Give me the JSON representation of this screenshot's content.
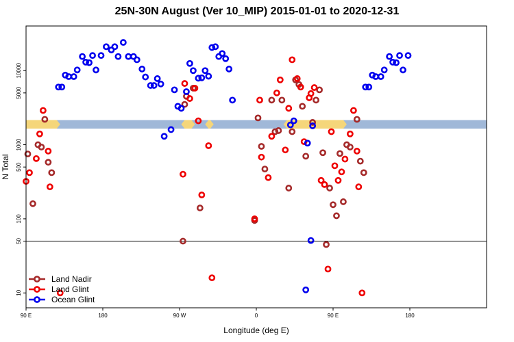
{
  "chart_data": {
    "type": "scatter",
    "title": "25N-30N August (Ver 10_MIP)   2015-01-01 to 2020-12-31",
    "xlabel": "Longitude (deg E)",
    "ylabel": "N Total",
    "y_scale": "log",
    "xlim": [
      -90,
      180
    ],
    "ylim": [
      6.3,
      40000
    ],
    "x_ticks": [
      {
        "value": -90,
        "label": "90 E"
      },
      {
        "value": -45,
        "label": "180"
      },
      {
        "value": 0,
        "label": "90 W"
      },
      {
        "value": 45,
        "label": "0"
      },
      {
        "value": 90,
        "label": "90 E"
      },
      {
        "value": 135,
        "label": "180"
      }
    ],
    "y_ticks": [
      {
        "value": 10,
        "label": "10"
      },
      {
        "value": 50,
        "label": "50"
      },
      {
        "value": 100,
        "label": "100"
      },
      {
        "value": 500,
        "label": "500"
      },
      {
        "value": 1000,
        "label": "1000"
      },
      {
        "value": 5000,
        "label": "5000"
      },
      {
        "value": 10000,
        "label": "10000"
      }
    ],
    "reference_line_y": 50,
    "legend_position": "bottom-left",
    "band": {
      "y_low": 1650,
      "y_high": 2150,
      "land_color": "#f5d67a",
      "ocean_color": "#a0b8d8",
      "land_segments": [
        [
          -90,
          -72
        ],
        [
          3,
          7
        ],
        [
          17,
          18
        ],
        [
          63,
          96
        ],
        [
          193,
          196
        ]
      ]
    },
    "series": [
      {
        "name": "Land Nadir",
        "color": "#a52a2a",
        "points": [
          {
            "x": -89,
            "y": 750
          },
          {
            "x": -86,
            "y": 160
          },
          {
            "x": -83,
            "y": 1000
          },
          {
            "x": -81,
            "y": 930
          },
          {
            "x": -79,
            "y": 2200
          },
          {
            "x": -77,
            "y": 580
          },
          {
            "x": -75,
            "y": 420
          },
          {
            "x": 2,
            "y": 50
          },
          {
            "x": 3,
            "y": 3500
          },
          {
            "x": 4,
            "y": 4500
          },
          {
            "x": 8,
            "y": 5800
          },
          {
            "x": 12,
            "y": 140
          },
          {
            "x": 44,
            "y": 95
          },
          {
            "x": 46,
            "y": 2300
          },
          {
            "x": 48,
            "y": 950
          },
          {
            "x": 50,
            "y": 470
          },
          {
            "x": 54,
            "y": 4000
          },
          {
            "x": 56,
            "y": 1500
          },
          {
            "x": 58,
            "y": 1550
          },
          {
            "x": 60,
            "y": 4000
          },
          {
            "x": 64,
            "y": 260
          },
          {
            "x": 66,
            "y": 1500
          },
          {
            "x": 68,
            "y": 7500
          },
          {
            "x": 70,
            "y": 6500
          },
          {
            "x": 72,
            "y": 3300
          },
          {
            "x": 74,
            "y": 700
          },
          {
            "x": 78,
            "y": 2000
          },
          {
            "x": 80,
            "y": 4000
          },
          {
            "x": 82,
            "y": 5500
          },
          {
            "x": 84,
            "y": 780
          },
          {
            "x": 86,
            "y": 45
          },
          {
            "x": 88,
            "y": 260
          },
          {
            "x": 90,
            "y": 155
          },
          {
            "x": 92,
            "y": 110
          },
          {
            "x": 94,
            "y": 760
          },
          {
            "x": 96,
            "y": 170
          },
          {
            "x": 98,
            "y": 1000
          },
          {
            "x": 100,
            "y": 930
          },
          {
            "x": 104,
            "y": 2200
          },
          {
            "x": 106,
            "y": 600
          },
          {
            "x": 108,
            "y": 420
          }
        ]
      },
      {
        "name": "Land Glint",
        "color": "#ee0000",
        "points": [
          {
            "x": -90,
            "y": 320
          },
          {
            "x": -88,
            "y": 420
          },
          {
            "x": -84,
            "y": 650
          },
          {
            "x": -82,
            "y": 1400
          },
          {
            "x": -80,
            "y": 2900
          },
          {
            "x": -77,
            "y": 820
          },
          {
            "x": -76,
            "y": 270
          },
          {
            "x": -70,
            "y": 10
          },
          {
            "x": 2,
            "y": 400
          },
          {
            "x": 3,
            "y": 6700
          },
          {
            "x": 6,
            "y": 4200
          },
          {
            "x": 9,
            "y": 5800
          },
          {
            "x": 11,
            "y": 2100
          },
          {
            "x": 13,
            "y": 210
          },
          {
            "x": 17,
            "y": 970
          },
          {
            "x": 19,
            "y": 16
          },
          {
            "x": 44,
            "y": 100
          },
          {
            "x": 47,
            "y": 4000
          },
          {
            "x": 48,
            "y": 680
          },
          {
            "x": 52,
            "y": 360
          },
          {
            "x": 54,
            "y": 1300
          },
          {
            "x": 57,
            "y": 5000
          },
          {
            "x": 59,
            "y": 7500
          },
          {
            "x": 62,
            "y": 850
          },
          {
            "x": 64,
            "y": 3100
          },
          {
            "x": 66,
            "y": 14000
          },
          {
            "x": 69,
            "y": 7800
          },
          {
            "x": 71,
            "y": 6000
          },
          {
            "x": 73,
            "y": 1100
          },
          {
            "x": 76,
            "y": 4300
          },
          {
            "x": 77,
            "y": 4900
          },
          {
            "x": 79,
            "y": 5900
          },
          {
            "x": 83,
            "y": 330
          },
          {
            "x": 85,
            "y": 290
          },
          {
            "x": 87,
            "y": 21
          },
          {
            "x": 89,
            "y": 1500
          },
          {
            "x": 91,
            "y": 520
          },
          {
            "x": 93,
            "y": 330
          },
          {
            "x": 95,
            "y": 430
          },
          {
            "x": 97,
            "y": 640
          },
          {
            "x": 100,
            "y": 1400
          },
          {
            "x": 102,
            "y": 2900
          },
          {
            "x": 104,
            "y": 820
          },
          {
            "x": 105,
            "y": 270
          },
          {
            "x": 107,
            "y": 10
          }
        ]
      },
      {
        "name": "Ocean Glint",
        "color": "#0000ee",
        "points": [
          {
            "x": -71,
            "y": 6000
          },
          {
            "x": -69,
            "y": 6000
          },
          {
            "x": -67,
            "y": 8700
          },
          {
            "x": -65,
            "y": 8300
          },
          {
            "x": -62,
            "y": 8300
          },
          {
            "x": -60,
            "y": 10200
          },
          {
            "x": -57,
            "y": 15500
          },
          {
            "x": -55,
            "y": 13000
          },
          {
            "x": -53,
            "y": 12800
          },
          {
            "x": -51,
            "y": 16000
          },
          {
            "x": -49,
            "y": 10200
          },
          {
            "x": -46,
            "y": 16000
          },
          {
            "x": -43,
            "y": 21000
          },
          {
            "x": -40,
            "y": 19000
          },
          {
            "x": -38,
            "y": 21000
          },
          {
            "x": -36,
            "y": 15500
          },
          {
            "x": -33,
            "y": 24000
          },
          {
            "x": -30,
            "y": 15500
          },
          {
            "x": -27,
            "y": 15500
          },
          {
            "x": -25,
            "y": 14000
          },
          {
            "x": -22,
            "y": 10500
          },
          {
            "x": -20,
            "y": 8200
          },
          {
            "x": -17,
            "y": 6300
          },
          {
            "x": -15,
            "y": 6300
          },
          {
            "x": -13,
            "y": 7800
          },
          {
            "x": -11,
            "y": 6600
          },
          {
            "x": -9,
            "y": 1300
          },
          {
            "x": -5,
            "y": 1600
          },
          {
            "x": -3,
            "y": 5500
          },
          {
            "x": -1,
            "y": 3300
          },
          {
            "x": 1,
            "y": 3100
          },
          {
            "x": 4,
            "y": 5200
          },
          {
            "x": 6,
            "y": 12500
          },
          {
            "x": 8,
            "y": 10000
          },
          {
            "x": 11,
            "y": 7900
          },
          {
            "x": 13,
            "y": 8000
          },
          {
            "x": 15,
            "y": 10000
          },
          {
            "x": 17,
            "y": 8400
          },
          {
            "x": 19,
            "y": 20500
          },
          {
            "x": 21,
            "y": 21000
          },
          {
            "x": 23,
            "y": 15500
          },
          {
            "x": 25,
            "y": 17000
          },
          {
            "x": 27,
            "y": 14500
          },
          {
            "x": 29,
            "y": 10500
          },
          {
            "x": 31,
            "y": 4000
          },
          {
            "x": 65,
            "y": 1850
          },
          {
            "x": 67,
            "y": 2100
          },
          {
            "x": 74,
            "y": 11
          },
          {
            "x": 75,
            "y": 1050
          },
          {
            "x": 77,
            "y": 51
          },
          {
            "x": 78,
            "y": 1800
          },
          {
            "x": 109,
            "y": 6000
          },
          {
            "x": 111,
            "y": 6000
          },
          {
            "x": 113,
            "y": 8700
          },
          {
            "x": 115,
            "y": 8300
          },
          {
            "x": 118,
            "y": 8300
          },
          {
            "x": 120,
            "y": 10200
          },
          {
            "x": 123,
            "y": 15500
          },
          {
            "x": 125,
            "y": 13000
          },
          {
            "x": 127,
            "y": 12800
          },
          {
            "x": 129,
            "y": 16000
          },
          {
            "x": 131,
            "y": 10200
          },
          {
            "x": 134,
            "y": 16000
          }
        ]
      }
    ]
  }
}
